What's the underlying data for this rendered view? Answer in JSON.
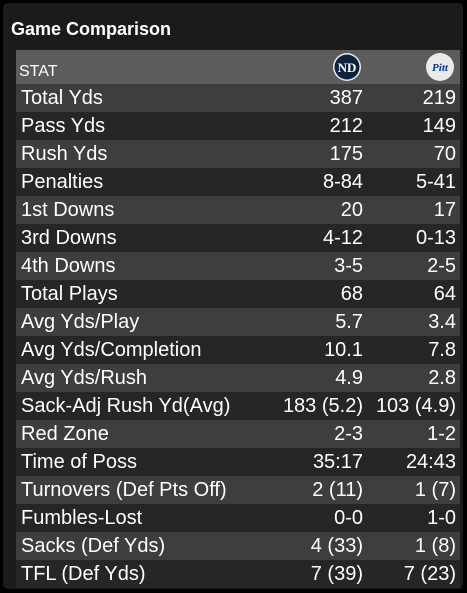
{
  "title": "Game Comparison",
  "header": {
    "stat_label": "STAT",
    "team_a_icon": "notre-dame-logo",
    "team_b_icon": "pitt-logo",
    "team_a_logo_text": "ND",
    "team_b_logo_text": "Pitt"
  },
  "colors": {
    "background": "#000000",
    "panel": "#1b1b1b",
    "header_row": "#5c5c5c",
    "row_odd": "#3e3e3e",
    "row_even": "#262626",
    "text": "#ffffff",
    "nd_navy": "#0c2340",
    "pitt_blue": "#003594"
  },
  "rows": [
    {
      "stat": "Total Yds",
      "a": "387",
      "b": "219"
    },
    {
      "stat": "Pass Yds",
      "a": "212",
      "b": "149"
    },
    {
      "stat": "Rush Yds",
      "a": "175",
      "b": "70"
    },
    {
      "stat": "Penalties",
      "a": "8-84",
      "b": "5-41"
    },
    {
      "stat": "1st Downs",
      "a": "20",
      "b": "17"
    },
    {
      "stat": "3rd Downs",
      "a": "4-12",
      "b": "0-13"
    },
    {
      "stat": "4th Downs",
      "a": "3-5",
      "b": "2-5"
    },
    {
      "stat": "Total Plays",
      "a": "68",
      "b": "64"
    },
    {
      "stat": "Avg Yds/Play",
      "a": "5.7",
      "b": "3.4"
    },
    {
      "stat": "Avg Yds/Completion",
      "a": "10.1",
      "b": "7.8"
    },
    {
      "stat": "Avg Yds/Rush",
      "a": "4.9",
      "b": "2.8"
    },
    {
      "stat": "Sack-Adj Rush Yd(Avg)",
      "a": "183 (5.2)",
      "b": "103 (4.9)"
    },
    {
      "stat": "Red Zone",
      "a": "2-3",
      "b": "1-2"
    },
    {
      "stat": "Time of Poss",
      "a": "35:17",
      "b": "24:43"
    },
    {
      "stat": "Turnovers (Def Pts Off)",
      "a": "2 (11)",
      "b": "1 (7)"
    },
    {
      "stat": "Fumbles-Lost",
      "a": "0-0",
      "b": "1-0"
    },
    {
      "stat": "Sacks (Def Yds)",
      "a": "4 (33)",
      "b": "1 (8)"
    },
    {
      "stat": "TFL (Def Yds)",
      "a": "7 (39)",
      "b": "7 (23)"
    }
  ]
}
